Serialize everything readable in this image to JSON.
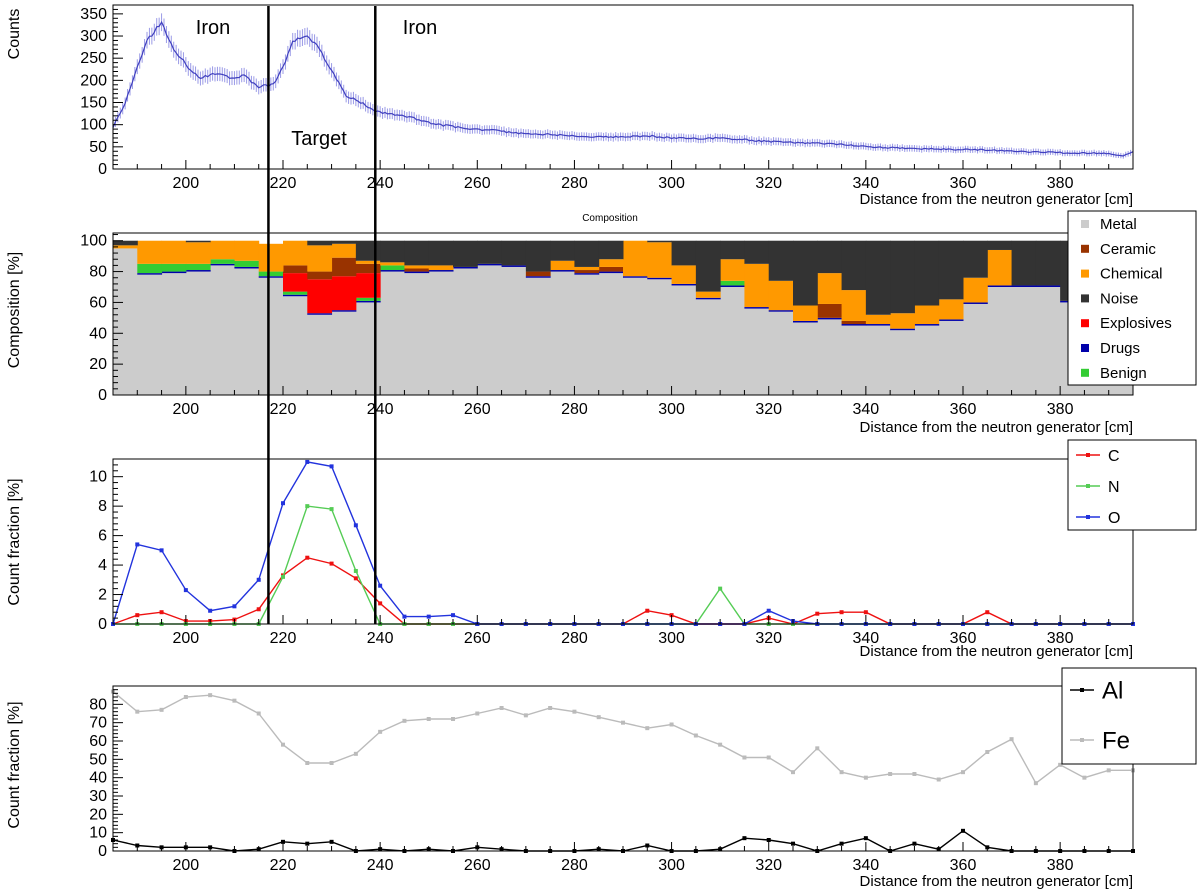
{
  "figure": {
    "xlabel": "Distance from the neutron generator [cm]",
    "x_ticks": [
      200,
      220,
      240,
      260,
      280,
      300,
      320,
      340,
      360,
      380
    ],
    "xlim": [
      185,
      395
    ],
    "marker_lines_x": [
      217,
      239
    ]
  },
  "chart_data": [
    {
      "type": "line",
      "ylabel": "Counts",
      "xlabel": "Distance from the neutron generator [cm]",
      "ylim": [
        0,
        370
      ],
      "y_ticks": [
        0,
        50,
        100,
        150,
        200,
        250,
        300,
        350
      ],
      "annotations": [
        {
          "text": "Iron",
          "x": 200.5,
          "y": 315
        },
        {
          "text": "Target",
          "x": 228,
          "y": 50
        },
        {
          "text": "Iron",
          "x": 244,
          "y": 315
        }
      ],
      "series": [
        {
          "color": "#3f3fbf",
          "error_bars": true,
          "x": [
            185,
            187,
            190,
            192,
            195,
            197,
            200,
            203,
            206,
            209,
            212,
            215,
            218,
            220,
            222,
            225,
            227,
            230,
            233,
            236,
            239,
            242,
            245,
            250,
            255,
            260,
            265,
            270,
            275,
            280,
            285,
            290,
            295,
            300,
            305,
            310,
            315,
            320,
            325,
            330,
            335,
            340,
            345,
            350,
            355,
            360,
            365,
            370,
            375,
            380,
            385,
            390,
            393,
            395
          ],
          "y": [
            95,
            135,
            230,
            290,
            330,
            280,
            235,
            205,
            215,
            205,
            210,
            185,
            190,
            230,
            290,
            300,
            280,
            220,
            165,
            150,
            130,
            125,
            120,
            105,
            95,
            90,
            85,
            80,
            78,
            75,
            72,
            72,
            75,
            70,
            68,
            70,
            66,
            62,
            60,
            58,
            55,
            50,
            48,
            46,
            45,
            44,
            43,
            40,
            38,
            37,
            36,
            35,
            30,
            40
          ]
        }
      ]
    },
    {
      "type": "area",
      "title": "Composition",
      "ylabel": "Composition [%]",
      "xlabel": "Distance from the neutron generator [cm]",
      "ylim": [
        0,
        105
      ],
      "y_ticks": [
        0,
        20,
        40,
        60,
        80,
        100
      ],
      "legend": [
        "Metal",
        "Ceramic",
        "Chemical",
        "Noise",
        "Explosives",
        "Drugs",
        "Benign"
      ],
      "colors": {
        "Metal": "#cccccc",
        "Ceramic": "#993300",
        "Chemical": "#ff9900",
        "Noise": "#333333",
        "Explosives": "#ff0000",
        "Drugs": "#0000aa",
        "Benign": "#33cc33"
      },
      "bin_width": 5,
      "bin_starts": [
        185,
        190,
        195,
        200,
        205,
        210,
        215,
        220,
        225,
        230,
        235,
        240,
        245,
        250,
        255,
        260,
        265,
        270,
        275,
        280,
        285,
        290,
        295,
        300,
        305,
        310,
        315,
        320,
        325,
        330,
        335,
        340,
        345,
        350,
        355,
        360,
        365,
        370,
        375,
        380,
        385,
        390
      ],
      "series": [
        {
          "name": "Metal",
          "values": [
            95,
            78,
            79,
            80,
            84,
            82,
            76,
            64,
            52,
            54,
            60,
            80,
            79,
            80,
            82,
            84,
            83,
            76,
            80,
            78,
            79,
            76,
            75,
            71,
            62,
            70,
            56,
            54,
            47,
            49,
            45,
            45,
            42,
            45,
            48,
            59,
            70,
            70,
            70,
            60,
            57,
            48
          ]
        },
        {
          "name": "Drugs",
          "values": [
            0,
            1,
            1,
            1,
            1,
            1,
            1,
            1,
            1,
            1,
            1,
            1,
            1,
            1,
            1,
            1,
            1,
            1,
            1,
            1,
            1,
            1,
            1,
            1,
            1,
            1,
            1,
            1,
            1,
            1,
            1,
            1,
            1,
            1,
            1,
            1,
            1,
            1,
            1,
            1,
            1,
            1
          ]
        },
        {
          "name": "Benign",
          "values": [
            0,
            6,
            5,
            4,
            3,
            4,
            3,
            2,
            0,
            0,
            2,
            3,
            0,
            0,
            0,
            0,
            0,
            0,
            0,
            0,
            0,
            0,
            0,
            0,
            0,
            3,
            0,
            0,
            0,
            0,
            0,
            0,
            0,
            0,
            0,
            0,
            0,
            0,
            0,
            0,
            0,
            0
          ]
        },
        {
          "name": "Explosives",
          "values": [
            0,
            0,
            0,
            0,
            0,
            0,
            0,
            12,
            22,
            22,
            16,
            0,
            0,
            0,
            0,
            0,
            0,
            0,
            0,
            0,
            0,
            0,
            0,
            0,
            0,
            0,
            0,
            0,
            0,
            0,
            0,
            0,
            0,
            0,
            0,
            0,
            0,
            0,
            0,
            0,
            0,
            0
          ]
        },
        {
          "name": "Ceramic",
          "values": [
            0,
            0,
            0,
            0,
            0,
            0,
            0,
            5,
            5,
            12,
            6,
            0,
            2,
            0,
            0,
            0,
            0,
            3,
            0,
            2,
            3,
            0,
            0,
            0,
            0,
            0,
            0,
            0,
            0,
            9,
            2,
            0,
            0,
            0,
            0,
            0,
            0,
            0,
            0,
            0,
            0,
            0
          ]
        },
        {
          "name": "Chemical",
          "values": [
            2,
            15,
            15,
            14,
            12,
            13,
            18,
            16,
            17,
            9,
            2,
            2,
            2,
            3,
            0,
            0,
            0,
            0,
            6,
            2,
            5,
            23,
            23,
            12,
            4,
            14,
            28,
            19,
            10,
            20,
            20,
            6,
            10,
            12,
            13,
            16,
            23,
            0,
            0,
            0,
            0,
            0
          ]
        },
        {
          "name": "Noise",
          "values": [
            3,
            0,
            0,
            1,
            0,
            0,
            0,
            0,
            3,
            2,
            13,
            14,
            16,
            16,
            17,
            15,
            16,
            20,
            13,
            17,
            12,
            0,
            1,
            16,
            33,
            12,
            15,
            26,
            42,
            21,
            32,
            48,
            47,
            42,
            38,
            24,
            6,
            29,
            29,
            39,
            42,
            51
          ]
        }
      ]
    },
    {
      "type": "line",
      "ylabel": "Count fraction [%]",
      "xlabel": "Distance from the neutron generator [cm]",
      "ylim": [
        0,
        11.2
      ],
      "y_ticks": [
        0,
        2,
        4,
        6,
        8,
        10
      ],
      "legend": [
        "C",
        "N",
        "O"
      ],
      "x": [
        185,
        190,
        195,
        200,
        205,
        210,
        215,
        220,
        225,
        230,
        235,
        240,
        245,
        250,
        255,
        260,
        265,
        270,
        275,
        280,
        285,
        290,
        295,
        300,
        305,
        310,
        315,
        320,
        325,
        330,
        335,
        340,
        345,
        350,
        355,
        360,
        365,
        370,
        375,
        380,
        385,
        390,
        395
      ],
      "series": [
        {
          "name": "C",
          "color": "#ee1111",
          "values": [
            0,
            0.6,
            0.8,
            0.2,
            0.2,
            0.3,
            1.0,
            3.3,
            4.5,
            4.1,
            3.1,
            1.4,
            0,
            0,
            0,
            0,
            0,
            0,
            0,
            0,
            0,
            0,
            0.9,
            0.6,
            0,
            0,
            0,
            0.4,
            0,
            0.7,
            0.8,
            0.8,
            0,
            0,
            0,
            0,
            0.8,
            0,
            0,
            0,
            0,
            0,
            0
          ]
        },
        {
          "name": "N",
          "color": "#55cc55",
          "values": [
            0,
            0,
            0,
            0,
            0,
            0,
            0,
            3.2,
            8.0,
            7.8,
            3.6,
            0,
            0,
            0,
            0,
            0,
            0,
            0,
            0,
            0,
            0,
            0,
            0,
            0,
            0,
            2.4,
            0,
            0,
            0,
            0,
            0,
            0,
            0,
            0,
            0,
            0,
            0,
            0,
            0,
            0,
            0,
            0,
            0
          ]
        },
        {
          "name": "O",
          "color": "#2233dd",
          "values": [
            0,
            5.4,
            5.0,
            2.3,
            0.9,
            1.2,
            3.0,
            8.2,
            11.0,
            10.7,
            6.7,
            2.6,
            0.5,
            0.5,
            0.6,
            0,
            0,
            0,
            0,
            0,
            0,
            0,
            0,
            0,
            0,
            0,
            0,
            0.9,
            0.2,
            0,
            0,
            0,
            0,
            0,
            0,
            0,
            0,
            0,
            0,
            0,
            0,
            0,
            0
          ]
        }
      ]
    },
    {
      "type": "line",
      "ylabel": "Count fraction [%]",
      "xlabel": "Distance from the neutron generator [cm]",
      "ylim": [
        0,
        90
      ],
      "y_ticks": [
        0,
        10,
        20,
        30,
        40,
        50,
        60,
        70,
        80
      ],
      "legend": [
        "Al",
        "Fe"
      ],
      "x": [
        185,
        190,
        195,
        200,
        205,
        210,
        215,
        220,
        225,
        230,
        235,
        240,
        245,
        250,
        255,
        260,
        265,
        270,
        275,
        280,
        285,
        290,
        295,
        300,
        305,
        310,
        315,
        320,
        325,
        330,
        335,
        340,
        345,
        350,
        355,
        360,
        365,
        370,
        375,
        380,
        385,
        390,
        395
      ],
      "series": [
        {
          "name": "Al",
          "color": "#000000",
          "values": [
            6,
            3,
            2,
            2,
            2,
            0,
            1,
            5,
            4,
            5,
            0,
            1,
            0,
            1,
            0,
            2,
            1,
            0,
            0,
            0,
            1,
            0,
            3,
            0,
            0,
            1,
            7,
            6,
            4,
            0,
            4,
            7,
            0,
            4,
            1,
            11,
            2,
            0,
            0,
            0,
            0,
            0,
            0
          ]
        },
        {
          "name": "Fe",
          "color": "#bbbbbb",
          "values": [
            87,
            76,
            77,
            84,
            85,
            82,
            75,
            58,
            48,
            48,
            53,
            65,
            71,
            72,
            72,
            75,
            78,
            74,
            78,
            76,
            73,
            70,
            67,
            69,
            63,
            58,
            51,
            51,
            43,
            56,
            43,
            40,
            42,
            42,
            39,
            43,
            54,
            61,
            37,
            47,
            40,
            44,
            44
          ]
        }
      ]
    }
  ]
}
